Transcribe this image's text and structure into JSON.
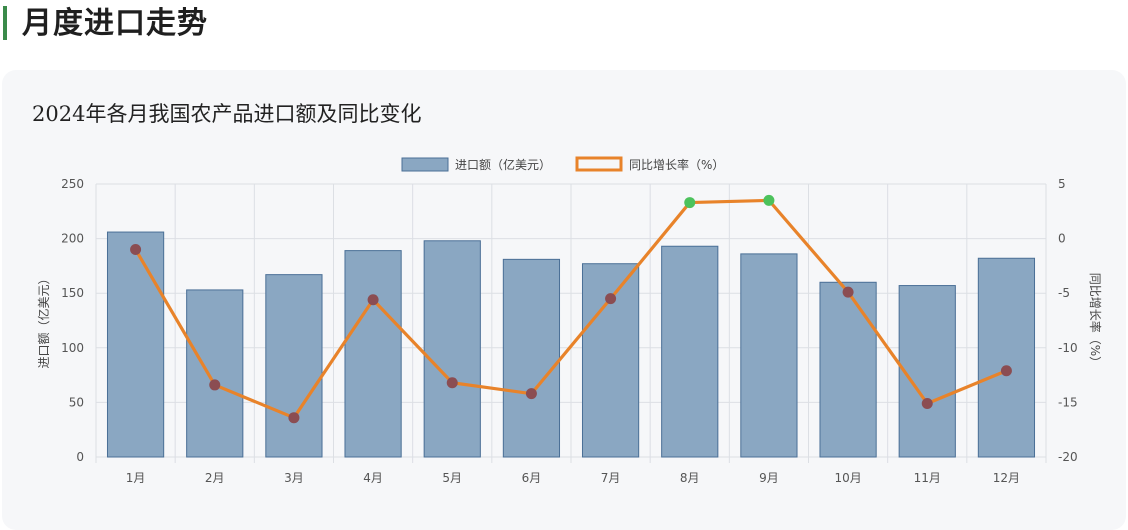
{
  "page": {
    "heading": "月度进口走势"
  },
  "card": {
    "title": "2024年各月我国农产品进口额及同比变化"
  },
  "chart_data": {
    "type": "bar",
    "title": "2024年各月我国农产品进口额及同比变化",
    "categories": [
      "1月",
      "2月",
      "3月",
      "4月",
      "5月",
      "6月",
      "7月",
      "8月",
      "9月",
      "10月",
      "11月",
      "12月"
    ],
    "series": [
      {
        "name": "进口额（亿美元）",
        "type": "bar",
        "axis": "left",
        "values": [
          206,
          153,
          167,
          189,
          198,
          181,
          177,
          193,
          186,
          160,
          157,
          182
        ]
      },
      {
        "name": "同比增长率（%）",
        "type": "line",
        "axis": "right",
        "values": [
          -1.0,
          -13.4,
          -16.4,
          -5.6,
          -13.2,
          -14.2,
          -5.5,
          3.3,
          3.5,
          -4.9,
          -15.1,
          -12.1
        ]
      }
    ],
    "ylabel_left": "进口额（亿美元）",
    "ylabel_right": "同比增长率（%）",
    "ylim_left": [
      0,
      250
    ],
    "ylim_right": [
      -20,
      5
    ],
    "yticks_left": [
      0,
      50,
      100,
      150,
      200,
      250
    ],
    "yticks_right": [
      -20,
      -15,
      -10,
      -5,
      0,
      5
    ],
    "grid": true,
    "legend_position": "top-center",
    "colors": {
      "bar_fill": "#8aa7c2",
      "bar_stroke": "#4a6f96",
      "line": "#e8832a",
      "marker_negative": "#8b4d52",
      "marker_positive": "#4cc25c",
      "grid": "#dcdfe4",
      "axis_text": "#555555"
    }
  }
}
